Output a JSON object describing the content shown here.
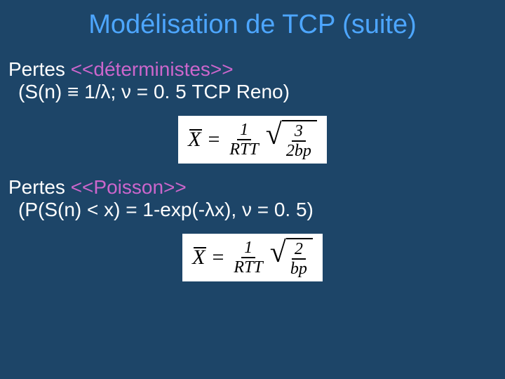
{
  "background_color": "#1d4568",
  "title": {
    "text": "Modélisation de TCP (suite)",
    "color": "#4da6ff",
    "fontsize": 38
  },
  "highlight_color": "#cc66cc",
  "text_color": "#ffffff",
  "body_fontsize": 28,
  "section1": {
    "label_prefix": "Pertes ",
    "label_highlight": "<<déterministes>>",
    "detail": "(S(n) ≡ 1/λ; ν = 0. 5 TCP Reno)"
  },
  "formula1": {
    "lhs": "X",
    "rhs_frac_num": "1",
    "rhs_frac_den": "RTT",
    "sqrt_num": "3",
    "sqrt_den": "2bp",
    "background": "#ffffff",
    "font": "Times New Roman",
    "fontsize": 30
  },
  "section2": {
    "label_prefix": "Pertes ",
    "label_highlight": "<<Poisson>>",
    "detail": "(P(S(n) < x) = 1-exp(-λx), ν = 0. 5)"
  },
  "formula2": {
    "lhs": "X",
    "rhs_frac_num": "1",
    "rhs_frac_den": "RTT",
    "sqrt_num": "2",
    "sqrt_den": "bp",
    "background": "#ffffff",
    "font": "Times New Roman",
    "fontsize": 30
  }
}
